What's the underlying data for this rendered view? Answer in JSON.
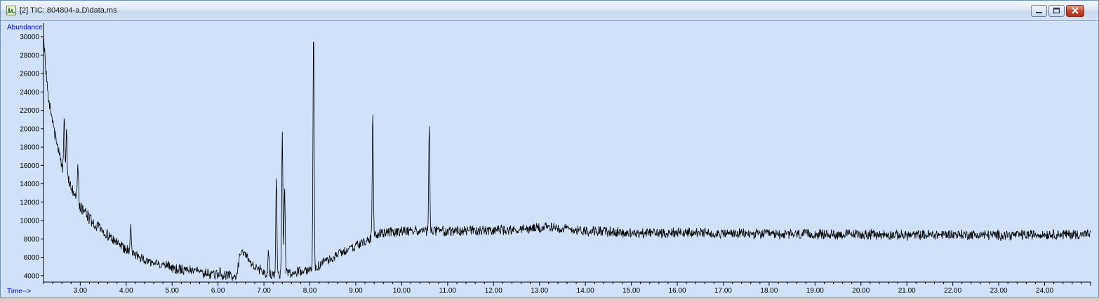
{
  "window": {
    "title": "[2] TIC: 804804-a.D\\data.ms",
    "icon": "chromatogram-app-icon",
    "controls": [
      "minimize-icon",
      "maximize-icon",
      "close-icon"
    ]
  },
  "colors": {
    "plot_bg": "#d1e2f8",
    "trace": "#000000",
    "axis_label": "#0000cc",
    "close_button": "#c8412a"
  },
  "chart_data": {
    "type": "line",
    "title": "",
    "xlabel": "Time-->",
    "ylabel": "Abundance",
    "xlim": [
      2.2,
      25.0
    ],
    "ylim": [
      3300,
      31500
    ],
    "x_ticks": [
      "3.00",
      "4.00",
      "5.00",
      "6.00",
      "7.00",
      "8.00",
      "9.00",
      "10.00",
      "11.00",
      "12.00",
      "13.00",
      "14.00",
      "15.00",
      "16.00",
      "17.00",
      "18.00",
      "19.00",
      "20.00",
      "21.00",
      "22.00",
      "23.00",
      "24.00"
    ],
    "y_ticks": [
      "4000",
      "6000",
      "8000",
      "10000",
      "12000",
      "14000",
      "16000",
      "18000",
      "20000",
      "22000",
      "24000",
      "26000",
      "28000",
      "30000"
    ],
    "grid": false,
    "legend": "none",
    "baseline": {
      "x": [
        2.2,
        2.3,
        2.4,
        2.5,
        2.6,
        2.8,
        3.0,
        3.2,
        3.5,
        3.8,
        4.0,
        4.3,
        4.6,
        5.0,
        5.5,
        6.0,
        6.4,
        6.5,
        6.6,
        6.8,
        7.0,
        7.2,
        7.5,
        7.8,
        8.1,
        8.5,
        9.0,
        9.3,
        9.5,
        10.0,
        10.6,
        11.0,
        12.0,
        12.8,
        13.3,
        13.8,
        14.5,
        15.0,
        16.0,
        17.0,
        18.0,
        19.0,
        20.0,
        21.0,
        22.0,
        23.0,
        24.0,
        25.0
      ],
      "y": [
        30000,
        23500,
        20500,
        18200,
        16000,
        13500,
        11500,
        10200,
        8800,
        7600,
        6800,
        6000,
        5400,
        4900,
        4400,
        4100,
        3950,
        6900,
        6200,
        5000,
        4300,
        4000,
        4300,
        4500,
        4800,
        6000,
        7300,
        7900,
        8600,
        8800,
        8900,
        8800,
        8900,
        9100,
        9300,
        9000,
        8800,
        8600,
        8700,
        8600,
        8500,
        8500,
        8500,
        8400,
        8500,
        8400,
        8500,
        8500
      ]
    },
    "noise_amplitude": 500,
    "peaks": [
      {
        "x": 2.65,
        "y": 21800
      },
      {
        "x": 2.7,
        "y": 19900
      },
      {
        "x": 2.95,
        "y": 16200
      },
      {
        "x": 4.1,
        "y": 9400
      },
      {
        "x": 6.05,
        "y": 4800
      },
      {
        "x": 7.1,
        "y": 6800
      },
      {
        "x": 7.27,
        "y": 15000
      },
      {
        "x": 7.4,
        "y": 19700
      },
      {
        "x": 7.45,
        "y": 14100
      },
      {
        "x": 8.08,
        "y": 31000
      },
      {
        "x": 9.37,
        "y": 21700
      },
      {
        "x": 10.6,
        "y": 20500
      }
    ]
  }
}
